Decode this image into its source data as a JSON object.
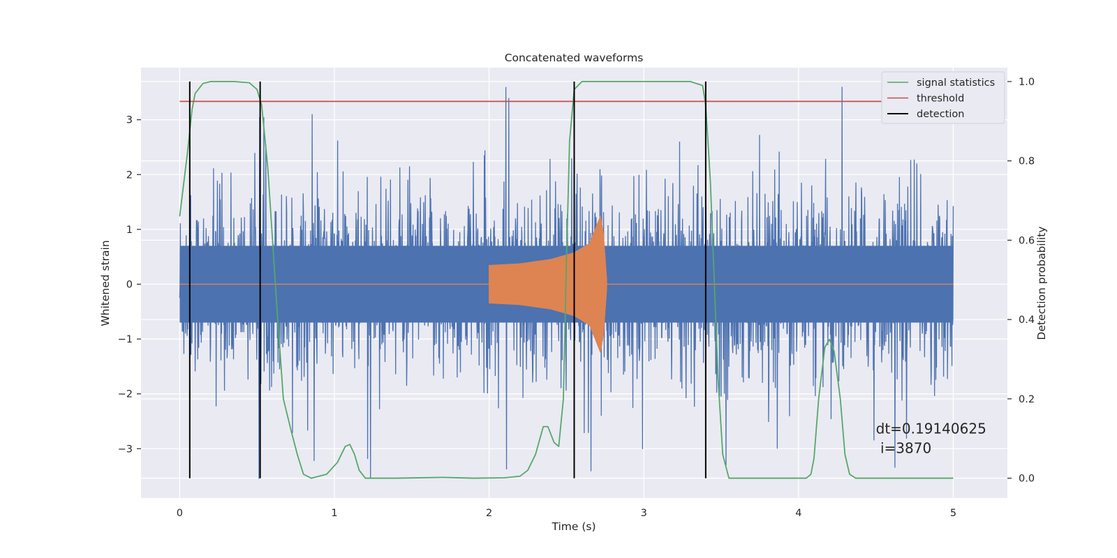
{
  "chart_data": {
    "type": "line",
    "title": "Concatenated waveforms",
    "xlabel": "Time (s)",
    "ylabel": "Whitened strain",
    "y2label": "Detection probability",
    "xlim": [
      -0.25,
      5.35
    ],
    "ylim": [
      -3.9,
      3.95
    ],
    "y2lim": [
      -0.05,
      1.035
    ],
    "x_ticks": [
      0,
      1,
      2,
      3,
      4,
      5
    ],
    "y_ticks": [
      -3,
      -2,
      -1,
      0,
      1,
      2,
      3
    ],
    "y2_ticks": [
      0.0,
      0.2,
      0.4,
      0.6,
      0.8,
      1.0
    ],
    "x_tick_labels": [
      "0",
      "1",
      "2",
      "3",
      "4",
      "5"
    ],
    "y_tick_labels": [
      "−3",
      "−2",
      "−1",
      "0",
      "1",
      "2",
      "3"
    ],
    "y2_tick_labels": [
      "0.0",
      "0.2",
      "0.4",
      "0.6",
      "0.8",
      "1.0"
    ],
    "grid": true,
    "legend_position": "top-right",
    "background_color": "#eaeaf2",
    "noise": {
      "color": "#4c72b0",
      "x_range": [
        0,
        5
      ],
      "core_amplitude": 0.7,
      "max_peak": 3.6,
      "min_trough": -3.55
    },
    "injected_waveform": {
      "color": "#dd8452",
      "x_range": [
        2.0,
        2.76
      ],
      "envelope": [
        {
          "x": 2.0,
          "amp": 0.35
        },
        {
          "x": 2.2,
          "amp": 0.38
        },
        {
          "x": 2.4,
          "amp": 0.46
        },
        {
          "x": 2.55,
          "amp": 0.58
        },
        {
          "x": 2.65,
          "amp": 0.75
        },
        {
          "x": 2.72,
          "amp": 1.25
        },
        {
          "x": 2.74,
          "amp": 0.9
        },
        {
          "x": 2.76,
          "amp": 0.1
        }
      ]
    },
    "series": [
      {
        "name": "signal statistics",
        "color": "#55a868",
        "axis": "right",
        "points": [
          [
            0.0,
            0.66
          ],
          [
            0.05,
            0.82
          ],
          [
            0.08,
            0.93
          ],
          [
            0.1,
            0.97
          ],
          [
            0.15,
            0.995
          ],
          [
            0.2,
            1.0
          ],
          [
            0.35,
            1.0
          ],
          [
            0.45,
            0.997
          ],
          [
            0.5,
            0.98
          ],
          [
            0.53,
            0.94
          ],
          [
            0.57,
            0.78
          ],
          [
            0.6,
            0.6
          ],
          [
            0.63,
            0.42
          ],
          [
            0.67,
            0.2
          ],
          [
            0.72,
            0.12
          ],
          [
            0.76,
            0.06
          ],
          [
            0.8,
            0.01
          ],
          [
            0.85,
            0.0
          ],
          [
            0.95,
            0.01
          ],
          [
            1.02,
            0.04
          ],
          [
            1.07,
            0.08
          ],
          [
            1.1,
            0.085
          ],
          [
            1.13,
            0.06
          ],
          [
            1.16,
            0.02
          ],
          [
            1.2,
            0.0
          ],
          [
            1.4,
            0.0
          ],
          [
            1.7,
            0.002
          ],
          [
            1.9,
            0.0
          ],
          [
            2.1,
            0.001
          ],
          [
            2.2,
            0.005
          ],
          [
            2.25,
            0.02
          ],
          [
            2.3,
            0.06
          ],
          [
            2.35,
            0.13
          ],
          [
            2.38,
            0.13
          ],
          [
            2.42,
            0.09
          ],
          [
            2.45,
            0.08
          ],
          [
            2.48,
            0.2
          ],
          [
            2.5,
            0.55
          ],
          [
            2.52,
            0.85
          ],
          [
            2.55,
            0.98
          ],
          [
            2.6,
            1.0
          ],
          [
            3.3,
            1.0
          ],
          [
            3.38,
            0.99
          ],
          [
            3.4,
            0.94
          ],
          [
            3.43,
            0.75
          ],
          [
            3.46,
            0.45
          ],
          [
            3.48,
            0.25
          ],
          [
            3.51,
            0.06
          ],
          [
            3.55,
            0.0
          ],
          [
            4.05,
            0.0
          ],
          [
            4.08,
            0.01
          ],
          [
            4.1,
            0.05
          ],
          [
            4.13,
            0.2
          ],
          [
            4.17,
            0.33
          ],
          [
            4.2,
            0.35
          ],
          [
            4.23,
            0.32
          ],
          [
            4.27,
            0.2
          ],
          [
            4.3,
            0.06
          ],
          [
            4.33,
            0.01
          ],
          [
            4.37,
            0.0
          ],
          [
            5.0,
            0.0
          ]
        ]
      },
      {
        "name": "threshold",
        "color": "#c44e52",
        "axis": "right",
        "points": [
          [
            0.0,
            0.95
          ],
          [
            5.0,
            0.95
          ]
        ]
      },
      {
        "name": "detection",
        "color": "#000000",
        "axis": "right",
        "type": "vlines",
        "x": [
          0.065,
          0.52,
          2.55,
          3.4
        ],
        "ymin": 0.0,
        "ymax": 1.0
      }
    ],
    "annotations": [
      {
        "text": "dt=0.19140625",
        "x": 4.5,
        "y": -2.72
      },
      {
        "text": " i=3870",
        "x": 4.5,
        "y": -3.08
      }
    ]
  }
}
